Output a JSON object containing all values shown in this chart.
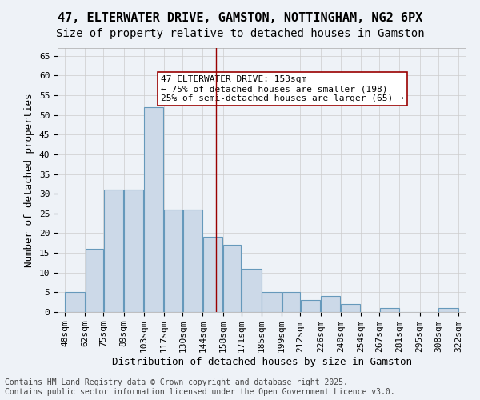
{
  "title_line1": "47, ELTERWATER DRIVE, GAMSTON, NOTTINGHAM, NG2 6PX",
  "title_line2": "Size of property relative to detached houses in Gamston",
  "xlabel": "Distribution of detached houses by size in Gamston",
  "ylabel": "Number of detached properties",
  "bins": [
    "48sqm",
    "62sqm",
    "75sqm",
    "89sqm",
    "103sqm",
    "117sqm",
    "130sqm",
    "144sqm",
    "158sqm",
    "171sqm",
    "185sqm",
    "199sqm",
    "212sqm",
    "226sqm",
    "240sqm",
    "254sqm",
    "267sqm",
    "281sqm",
    "295sqm",
    "308sqm",
    "322sqm"
  ],
  "bin_edges": [
    48,
    62,
    75,
    89,
    103,
    117,
    130,
    144,
    158,
    171,
    185,
    199,
    212,
    226,
    240,
    254,
    267,
    281,
    295,
    308,
    322
  ],
  "bar_heights": [
    5,
    16,
    31,
    31,
    52,
    26,
    26,
    19,
    17,
    11,
    5,
    5,
    3,
    4,
    2,
    0,
    1,
    0,
    0,
    1
  ],
  "bar_color": "#ccd9e8",
  "bar_edge_color": "#6699bb",
  "grid_color": "#cccccc",
  "bg_color": "#eef2f7",
  "vline_x": 153,
  "vline_color": "#990000",
  "annotation_text": "47 ELTERWATER DRIVE: 153sqm\n← 75% of detached houses are smaller (198)\n25% of semi-detached houses are larger (65) →",
  "annotation_box_color": "#ffffff",
  "annotation_box_edge": "#990000",
  "ylim": [
    0,
    67
  ],
  "yticks": [
    0,
    5,
    10,
    15,
    20,
    25,
    30,
    35,
    40,
    45,
    50,
    55,
    60,
    65
  ],
  "footer_text": "Contains HM Land Registry data © Crown copyright and database right 2025.\nContains public sector information licensed under the Open Government Licence v3.0.",
  "title_fontsize": 11,
  "subtitle_fontsize": 10,
  "axis_label_fontsize": 9,
  "tick_fontsize": 8,
  "annotation_fontsize": 8,
  "footer_fontsize": 7
}
